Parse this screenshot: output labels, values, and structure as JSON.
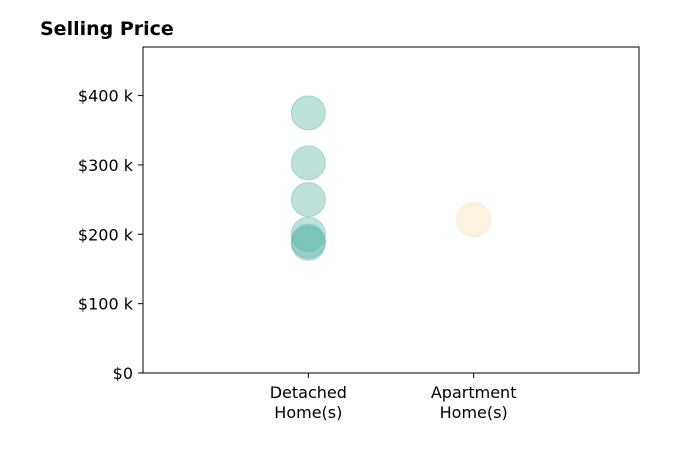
{
  "chart_data": {
    "type": "scatter",
    "title": "Selling Price",
    "xlabel": "",
    "ylabel": "",
    "categories": [
      "Detached\nHome(s)",
      "Apartment\nHome(s)"
    ],
    "ylim": [
      0,
      470000
    ],
    "y_ticks": [
      0,
      100000,
      200000,
      300000,
      400000
    ],
    "y_tick_labels": [
      "$0",
      "$100 k",
      "$200 k",
      "$300 k",
      "$400 k"
    ],
    "grid": false,
    "series": [
      {
        "category": "Detached\nHome(s)",
        "color": "#5bb5a6",
        "values": [
          375000,
          303000,
          250000,
          200000,
          190000,
          187000
        ]
      },
      {
        "category": "Apartment\nHome(s)",
        "color": "#f5deb0",
        "values": [
          221000
        ]
      }
    ]
  }
}
